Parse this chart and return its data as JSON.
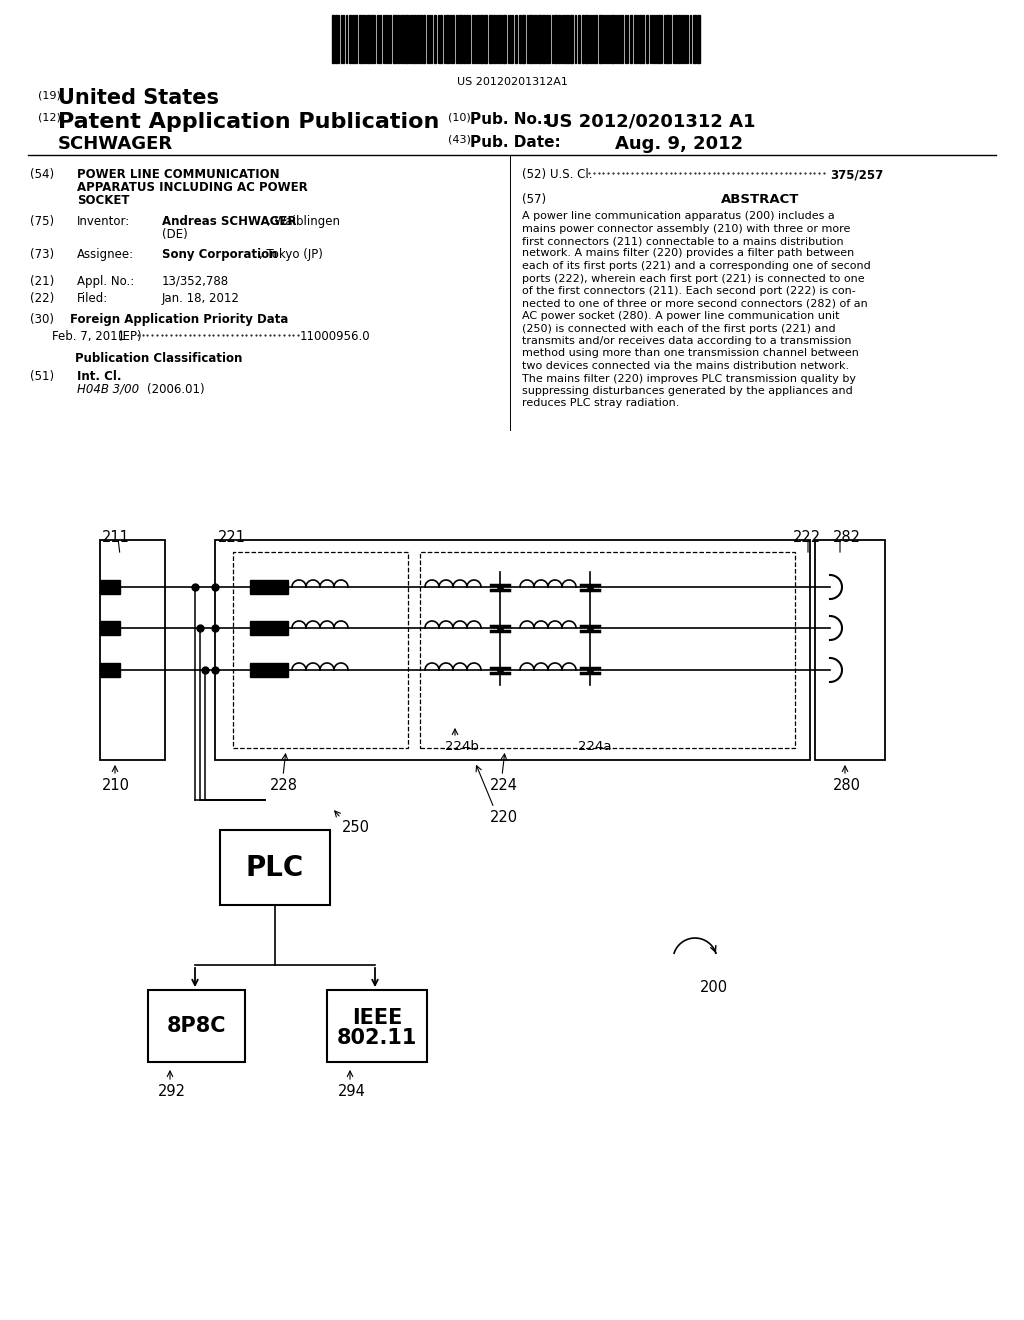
{
  "bg_color": "#ffffff",
  "barcode_text": "US 20120201312A1",
  "header_19": "(19)",
  "header_19_val": "United States",
  "header_12": "(12)",
  "header_12_val": "Patent Application Publication",
  "header_schwager": "SCHWAGER",
  "header_10": "(10)",
  "header_10_label": "Pub. No.:",
  "header_10_val": "US 2012/0201312 A1",
  "header_43": "(43)",
  "header_43_label": "Pub. Date:",
  "header_43_val": "Aug. 9, 2012",
  "f54_num": "(54)",
  "f54_l1": "POWER LINE COMMUNICATION",
  "f54_l2": "APPARATUS INCLUDING AC POWER",
  "f54_l3": "SOCKET",
  "f75_num": "(75)",
  "f75_label": "Inventor:",
  "f75_bold": "Andreas SCHWAGER",
  "f75_rest": ", Waiblingen",
  "f75_de": "(DE)",
  "f73_num": "(73)",
  "f73_label": "Assignee:",
  "f73_bold": "Sony Corporation",
  "f73_rest": ", Tokyo (JP)",
  "f21_num": "(21)",
  "f21_label": "Appl. No.:",
  "f21_val": "13/352,788",
  "f22_num": "(22)",
  "f22_label": "Filed:",
  "f22_val": "Jan. 18, 2012",
  "f30_num": "(30)",
  "f30_label": "Foreign Application Priority Data",
  "f30_date": "Feb. 7, 2011",
  "f30_ep": "(EP)",
  "f30_num_val": "11000956.0",
  "pub_class": "Publication Classification",
  "f51_num": "(51)",
  "f51_label": "Int. Cl.",
  "f51_class": "H04B 3/00",
  "f51_year": "(2006.01)",
  "f52_num": "(52)",
  "f52_label": "U.S. Cl.",
  "f52_val": "375/257",
  "f57_num": "(57)",
  "f57_label": "ABSTRACT",
  "abstract_lines": [
    "A power line communication apparatus (200) includes a",
    "mains power connector assembly (210) with three or more",
    "first connectors (211) connectable to a mains distribution",
    "network. A mains filter (220) provides a filter path between",
    "each of its first ports (221) and a corresponding one of second",
    "ports (222), wherein each first port (221) is connected to one",
    "of the first connectors (211). Each second port (222) is con-",
    "nected to one of three or more second connectors (282) of an",
    "AC power socket (280). A power line communication unit",
    "(250) is connected with each of the first ports (221) and",
    "transmits and/or receives data according to a transmission",
    "method using more than one transmission channel between",
    "two devices connected via the mains distribution network.",
    "The mains filter (220) improves PLC transmission quality by",
    "suppressing disturbances generated by the appliances and",
    "reduces PLC stray radiation."
  ]
}
